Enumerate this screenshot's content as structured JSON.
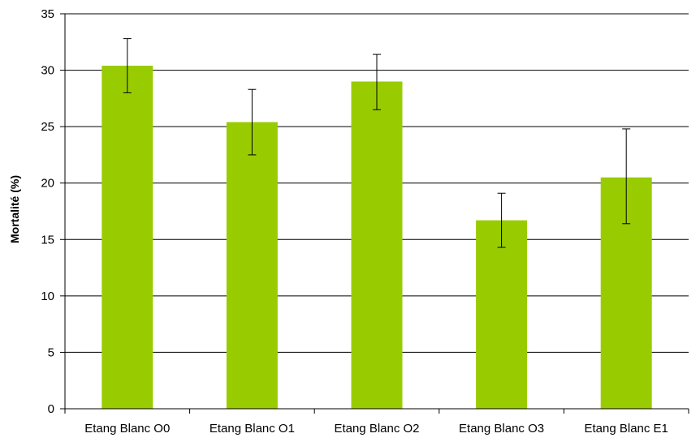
{
  "chart_data": {
    "type": "bar",
    "title": "",
    "xlabel": "",
    "ylabel": "Mortalité (%)",
    "categories": [
      "Etang Blanc O0",
      "Etang Blanc O1",
      "Etang Blanc O2",
      "Etang Blanc O3",
      "Etang Blanc E1"
    ],
    "series": [
      {
        "values": [
          30.4,
          25.4,
          29.0,
          16.7,
          20.5
        ],
        "error_low": [
          28.0,
          22.5,
          26.5,
          14.3,
          16.4
        ],
        "error_high": [
          32.8,
          28.3,
          31.4,
          19.1,
          24.8
        ],
        "color": "#99cc00"
      }
    ],
    "ylim": [
      0,
      35
    ],
    "yticks": [
      0,
      5,
      10,
      15,
      20,
      25,
      30,
      35
    ],
    "grid": true,
    "legend": "none"
  }
}
